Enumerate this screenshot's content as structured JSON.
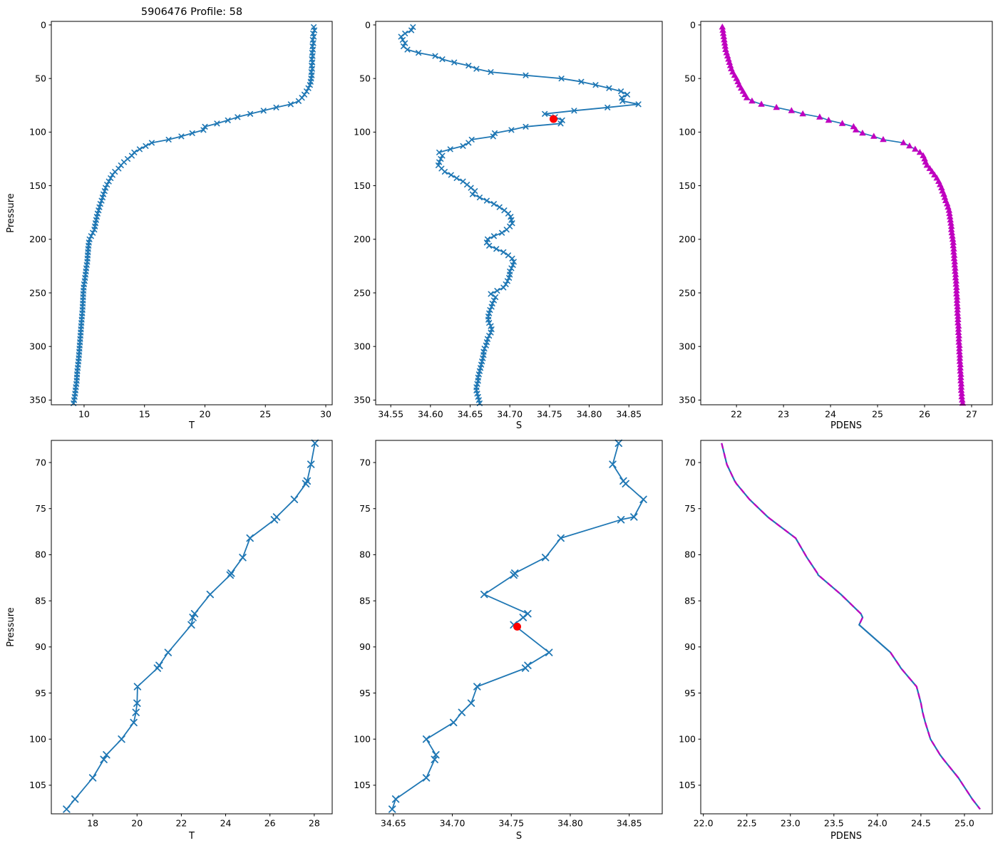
{
  "title": "5906476 Profile: 58",
  "ylabel": "Pressure",
  "colors": {
    "profile_blue": "#1f77b4",
    "density_magenta": "#bf00bf",
    "highlight_red": "#ff0000",
    "axis": "#000000"
  },
  "highlight_point": {
    "S": 34.755,
    "p": 87.8
  },
  "profiles": {
    "full": {
      "p": [
        2,
        5,
        8,
        11,
        14,
        17,
        20,
        23,
        26,
        29,
        32,
        35,
        38,
        41,
        44,
        47,
        50,
        53,
        56,
        59,
        62,
        65,
        68,
        71,
        74,
        77,
        80,
        83,
        86,
        89,
        92,
        95,
        98,
        101,
        104,
        107,
        110,
        113,
        116,
        119,
        122,
        125,
        128,
        131,
        134,
        137,
        140,
        143,
        146,
        149,
        152,
        155,
        158,
        161,
        164,
        167,
        170,
        173,
        176,
        179,
        182,
        185,
        188,
        191,
        194,
        197,
        200,
        203,
        206,
        209,
        212,
        215,
        218,
        221,
        224,
        227,
        230,
        233,
        236,
        239,
        242,
        245,
        248,
        251,
        254,
        257,
        260,
        263,
        266,
        269,
        272,
        275,
        278,
        281,
        284,
        287,
        290,
        293,
        296,
        299,
        302,
        305,
        308,
        311,
        314,
        317,
        320,
        323,
        326,
        329,
        332,
        335,
        338,
        341,
        344,
        347,
        350,
        353
      ],
      "T": [
        29.0,
        29.06,
        28.95,
        29.01,
        28.92,
        28.97,
        28.9,
        28.94,
        28.87,
        28.91,
        28.85,
        28.89,
        28.83,
        28.87,
        28.81,
        28.84,
        28.79,
        28.75,
        28.69,
        28.56,
        28.41,
        28.23,
        28.03,
        27.75,
        27.1,
        25.9,
        24.85,
        23.75,
        22.7,
        21.9,
        21.0,
        20.0,
        19.88,
        18.95,
        18.05,
        17.0,
        15.6,
        15.1,
        14.6,
        14.15,
        13.95,
        13.6,
        13.3,
        13.05,
        12.85,
        12.55,
        12.35,
        12.2,
        12.05,
        11.9,
        11.78,
        11.7,
        11.6,
        11.53,
        11.45,
        11.35,
        11.27,
        11.2,
        11.12,
        11.06,
        11.0,
        10.95,
        10.9,
        10.85,
        10.72,
        10.58,
        10.45,
        10.4,
        10.37,
        10.34,
        10.32,
        10.3,
        10.28,
        10.26,
        10.22,
        10.18,
        10.15,
        10.12,
        10.08,
        10.05,
        10.0,
        9.97,
        9.95,
        9.93,
        9.92,
        9.91,
        9.9,
        9.88,
        9.87,
        9.85,
        9.82,
        9.8,
        9.78,
        9.76,
        9.74,
        9.72,
        9.7,
        9.68,
        9.66,
        9.64,
        9.62,
        9.6,
        9.58,
        9.56,
        9.53,
        9.5,
        9.47,
        9.44,
        9.42,
        9.41,
        9.39,
        9.36,
        9.32,
        9.29,
        9.26,
        9.22,
        9.18,
        9.13
      ],
      "S": [
        34.578,
        34.576,
        34.568,
        34.563,
        34.565,
        34.568,
        34.566,
        34.571,
        34.585,
        34.606,
        34.615,
        34.63,
        34.648,
        34.658,
        34.676,
        34.72,
        34.765,
        34.79,
        34.808,
        34.825,
        34.84,
        34.848,
        34.841,
        34.842,
        34.862,
        34.823,
        34.781,
        34.744,
        34.757,
        34.766,
        34.764,
        34.72,
        34.702,
        34.681,
        34.679,
        34.652,
        34.648,
        34.641,
        34.625,
        34.611,
        34.615,
        34.613,
        34.611,
        34.61,
        34.614,
        34.618,
        34.626,
        34.633,
        34.641,
        34.646,
        34.651,
        34.656,
        34.653,
        34.662,
        34.671,
        34.68,
        34.687,
        34.693,
        34.698,
        34.701,
        34.702,
        34.703,
        34.7,
        34.696,
        34.69,
        34.68,
        34.672,
        34.671,
        34.674,
        34.683,
        34.692,
        34.698,
        34.703,
        34.705,
        34.704,
        34.702,
        34.7,
        34.7,
        34.699,
        34.697,
        34.695,
        34.692,
        34.684,
        34.676,
        34.682,
        34.68,
        34.678,
        34.677,
        34.675,
        34.674,
        34.673,
        34.673,
        34.674,
        34.676,
        34.677,
        34.676,
        34.674,
        34.672,
        34.671,
        34.67,
        34.668,
        34.667,
        34.667,
        34.666,
        34.665,
        34.664,
        34.663,
        34.662,
        34.661,
        34.66,
        34.66,
        34.659,
        34.658,
        34.658,
        34.659,
        34.66,
        34.661,
        34.662
      ],
      "PDENS": [
        21.7,
        21.71,
        21.72,
        21.73,
        21.74,
        21.75,
        21.76,
        21.77,
        21.79,
        21.81,
        21.83,
        21.85,
        21.87,
        21.89,
        21.92,
        21.96,
        22.0,
        22.03,
        22.06,
        22.1,
        22.14,
        22.18,
        22.22,
        22.33,
        22.53,
        22.85,
        23.17,
        23.41,
        23.77,
        23.96,
        24.25,
        24.49,
        24.54,
        24.68,
        24.92,
        25.12,
        25.55,
        25.68,
        25.8,
        25.9,
        25.97,
        26.0,
        26.02,
        26.05,
        26.11,
        26.16,
        26.21,
        26.26,
        26.3,
        26.33,
        26.36,
        26.38,
        26.41,
        26.43,
        26.45,
        26.48,
        26.5,
        26.52,
        26.53,
        26.54,
        26.55,
        26.56,
        26.57,
        26.57,
        26.58,
        26.59,
        26.6,
        26.61,
        26.61,
        26.62,
        26.62,
        26.63,
        26.63,
        26.64,
        26.64,
        26.65,
        26.65,
        26.66,
        26.66,
        26.67,
        26.67,
        26.68,
        26.68,
        26.68,
        26.69,
        26.69,
        26.69,
        26.7,
        26.7,
        26.7,
        26.71,
        26.71,
        26.71,
        26.72,
        26.72,
        26.72,
        26.73,
        26.73,
        26.73,
        26.74,
        26.74,
        26.74,
        26.75,
        26.75,
        26.75,
        26.76,
        26.76,
        26.76,
        26.77,
        26.77,
        26.77,
        26.78,
        26.78,
        26.78,
        26.79,
        26.79,
        26.8,
        26.81
      ]
    },
    "zoom": {
      "p": [
        67.9,
        70.2,
        72.0,
        72.3,
        74.0,
        75.9,
        76.2,
        78.2,
        80.3,
        82.0,
        82.2,
        84.3,
        86.4,
        86.8,
        87.6,
        90.6,
        92.0,
        92.3,
        94.3,
        96.1,
        97.1,
        98.2,
        100.0,
        101.7,
        102.2,
        104.2,
        106.5,
        107.6
      ],
      "T": [
        28.03,
        27.85,
        27.68,
        27.62,
        27.1,
        26.3,
        26.2,
        25.1,
        24.77,
        24.25,
        24.2,
        23.3,
        22.6,
        22.52,
        22.45,
        21.4,
        21.0,
        20.92,
        20.02,
        20.0,
        19.95,
        19.85,
        19.3,
        18.62,
        18.5,
        18.0,
        17.2,
        16.82
      ],
      "S": [
        34.841,
        34.836,
        34.845,
        34.847,
        34.862,
        34.854,
        34.843,
        34.792,
        34.779,
        34.753,
        34.752,
        34.727,
        34.764,
        34.76,
        34.752,
        34.782,
        34.764,
        34.762,
        34.721,
        34.716,
        34.708,
        34.701,
        34.678,
        34.686,
        34.685,
        34.678,
        34.652,
        34.649
      ],
      "PDENS": [
        22.21,
        22.27,
        22.36,
        22.38,
        22.53,
        22.74,
        22.78,
        23.06,
        23.19,
        23.31,
        23.32,
        23.58,
        23.81,
        23.83,
        23.79,
        24.15,
        24.25,
        24.27,
        24.45,
        24.5,
        24.52,
        24.55,
        24.61,
        24.72,
        24.76,
        24.93,
        25.09,
        25.18
      ]
    }
  },
  "chart_data": [
    {
      "id": "T-full",
      "type": "line",
      "row": 0,
      "col": 0,
      "source": "full",
      "x_var": "T",
      "xlabel": "T",
      "ylabel": "Pressure",
      "title": "5906476 Profile: 58",
      "xlim": [
        7.29,
        30.53
      ],
      "ylim": [
        -3.3,
        354.4
      ],
      "xticks": [
        10,
        15,
        20,
        25,
        30
      ],
      "yticks": [
        0,
        50,
        100,
        150,
        200,
        250,
        300,
        350
      ],
      "x_tick_format": "int",
      "style": "line-x",
      "marker_size": 3.2,
      "grid": false
    },
    {
      "id": "S-full",
      "type": "line",
      "row": 0,
      "col": 1,
      "source": "full",
      "x_var": "S",
      "xlabel": "S",
      "ylabel": "",
      "xlim": [
        34.531,
        34.892
      ],
      "ylim": [
        -3.3,
        354.4
      ],
      "xticks": [
        34.55,
        34.6,
        34.65,
        34.7,
        34.75,
        34.8,
        34.85
      ],
      "yticks": [
        0,
        50,
        100,
        150,
        200,
        250,
        300,
        350
      ],
      "x_tick_format": "2dp",
      "style": "line-x",
      "marker_size": 3.2,
      "red_dot": true,
      "grid": false
    },
    {
      "id": "PDENS-full",
      "type": "line",
      "row": 0,
      "col": 2,
      "source": "full",
      "x_var": "PDENS",
      "xlabel": "PDENS",
      "ylabel": "",
      "xlim": [
        21.24,
        27.44
      ],
      "ylim": [
        -3.3,
        354.4
      ],
      "xticks": [
        22,
        23,
        24,
        25,
        26,
        27
      ],
      "yticks": [
        0,
        50,
        100,
        150,
        200,
        250,
        300,
        350
      ],
      "x_tick_format": "int",
      "style": "line-triangle",
      "marker_size": 5,
      "grid": false
    },
    {
      "id": "T-zoom",
      "type": "line",
      "row": 1,
      "col": 0,
      "source": "zoom",
      "x_var": "T",
      "xlabel": "T",
      "ylabel": "Pressure",
      "xlim": [
        16.13,
        28.81
      ],
      "ylim": [
        67.6,
        108.1
      ],
      "xticks": [
        18,
        20,
        22,
        24,
        26,
        28
      ],
      "yticks": [
        70,
        75,
        80,
        85,
        90,
        95,
        100,
        105
      ],
      "x_tick_format": "int",
      "style": "line-x",
      "marker_size": 4.3,
      "grid": false
    },
    {
      "id": "S-zoom",
      "type": "line",
      "row": 1,
      "col": 1,
      "source": "zoom",
      "x_var": "S",
      "xlabel": "S",
      "ylabel": "",
      "xlim": [
        34.635,
        34.878
      ],
      "ylim": [
        67.6,
        108.1
      ],
      "xticks": [
        34.65,
        34.7,
        34.75,
        34.8,
        34.85
      ],
      "yticks": [
        70,
        75,
        80,
        85,
        90,
        95,
        100,
        105
      ],
      "x_tick_format": "2dp",
      "style": "line-x",
      "marker_size": 4.3,
      "red_dot": true,
      "grid": false
    },
    {
      "id": "PDENS-zoom",
      "type": "line",
      "row": 1,
      "col": 2,
      "source": "zoom",
      "x_var": "PDENS",
      "xlabel": "PDENS",
      "ylabel": "",
      "xlim": [
        21.97,
        25.32
      ],
      "ylim": [
        67.6,
        108.1
      ],
      "xticks": [
        22.0,
        22.5,
        23.0,
        23.5,
        24.0,
        24.5,
        25.0
      ],
      "yticks": [
        70,
        75,
        80,
        85,
        90,
        95,
        100,
        105
      ],
      "x_tick_format": "1dp",
      "style": "line-dashed-overlay",
      "dash_gap_after_index": 14,
      "grid": false
    }
  ]
}
